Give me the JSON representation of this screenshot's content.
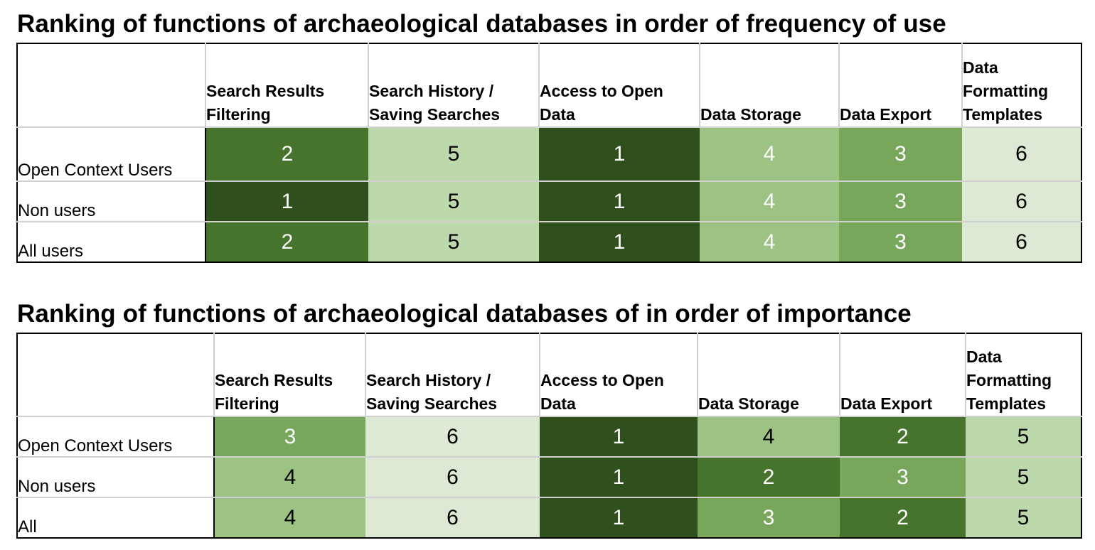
{
  "chart_data": [
    {
      "type": "table",
      "title": "Ranking of functions of archaeological databases in order of frequency of use",
      "columns": [
        "Search Results Filtering",
        "Search History / Saving Searches",
        "Access to Open Data",
        "Data Storage",
        "Data Export",
        "Data Formatting Templates"
      ],
      "rows": [
        {
          "label": "Open Context Users",
          "values": [
            2,
            5,
            1,
            4,
            3,
            6
          ]
        },
        {
          "label": "Non users",
          "values": [
            1,
            5,
            1,
            4,
            3,
            6
          ]
        },
        {
          "label": "All users",
          "values": [
            2,
            5,
            1,
            4,
            3,
            6
          ]
        }
      ]
    },
    {
      "type": "table",
      "title": "Ranking of functions of archaeological databases of in order of importance",
      "columns": [
        "Search Results Filtering",
        "Search History / Saving Searches",
        "Access to Open Data",
        "Data Storage",
        "Data Export",
        "Data Formatting Templates"
      ],
      "rows": [
        {
          "label": "Open Context Users",
          "values": [
            3,
            6,
            1,
            4,
            2,
            5
          ]
        },
        {
          "label": "Non users",
          "values": [
            4,
            6,
            1,
            2,
            3,
            5
          ]
        },
        {
          "label": "All",
          "values": [
            4,
            6,
            1,
            3,
            2,
            5
          ]
        }
      ]
    }
  ],
  "rank_colors": {
    "1": "#2f4f1d",
    "2": "#47742d",
    "3": "#78a65a",
    "4": "#9cc384",
    "5": "#bdd9ab",
    "6": "#dde9d5"
  }
}
